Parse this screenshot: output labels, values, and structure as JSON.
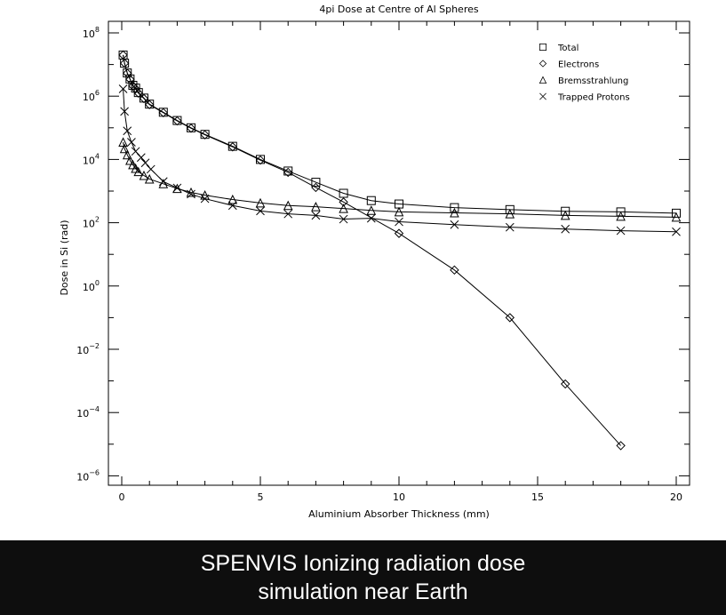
{
  "chart_data": {
    "type": "line",
    "title": "4pi Dose at Centre of Al Spheres",
    "xlabel": "Aluminium Absorber Thickness (mm)",
    "ylabel": "Dose in Si (rad)",
    "xlim": [
      0,
      20
    ],
    "ylim": [
      1e-06,
      100000000.0
    ],
    "yscale": "log",
    "xticks": [
      0,
      5,
      10,
      15,
      20
    ],
    "yticks": [
      {
        "exp": "8"
      },
      {
        "exp": "6"
      },
      {
        "exp": "4"
      },
      {
        "exp": "2"
      },
      {
        "exp": "0"
      },
      {
        "exp": "−2"
      },
      {
        "exp": "−4"
      },
      {
        "exp": "−6"
      }
    ],
    "ytick_base": "10",
    "grid": false,
    "legend_position": "top-right",
    "series": [
      {
        "name": "Total",
        "marker": "square",
        "x": [
          0.05,
          0.1,
          0.2,
          0.3,
          0.4,
          0.5,
          0.6,
          0.8,
          1.0,
          1.5,
          2,
          2.5,
          3,
          4,
          5,
          6,
          7,
          8,
          9,
          10,
          12,
          14,
          16,
          18,
          20
        ],
        "y": [
          20000000.0,
          11000000.0,
          5400000.0,
          3500000.0,
          2200000.0,
          1800000.0,
          1300000.0,
          870000.0,
          560000.0,
          310000.0,
          170000.0,
          100000.0,
          62000.0,
          26000.0,
          10000.0,
          4300.0,
          1900.0,
          850,
          500,
          390,
          300,
          260,
          230,
          220,
          200
        ]
      },
      {
        "name": "Electrons",
        "marker": "diamond",
        "x": [
          0.05,
          0.1,
          0.2,
          0.3,
          0.4,
          0.5,
          0.6,
          0.8,
          1.0,
          1.5,
          2,
          2.5,
          3,
          4,
          5,
          6,
          7,
          8,
          10,
          12,
          14,
          16,
          18
        ],
        "y": [
          20000000.0,
          11000000.0,
          5300000.0,
          3400000.0,
          2100000.0,
          1700000.0,
          1250000.0,
          840000.0,
          540000.0,
          300000.0,
          165000.0,
          97000.0,
          60000.0,
          25000.0,
          9500.0,
          3900.0,
          1300.0,
          450,
          46,
          3.2,
          0.1,
          0.0008,
          9e-06
        ]
      },
      {
        "name": "Bremsstrahlung",
        "marker": "triangle",
        "x": [
          0.05,
          0.1,
          0.2,
          0.3,
          0.4,
          0.5,
          0.6,
          0.8,
          1.0,
          1.5,
          2,
          2.5,
          3,
          4,
          5,
          6,
          7,
          8,
          9,
          10,
          12,
          14,
          16,
          18,
          20
        ],
        "y": [
          35000.0,
          22000.0,
          14000.0,
          9300.0,
          6800.0,
          5200.0,
          4100.0,
          3100.0,
          2400.0,
          1700.0,
          1200.0,
          910,
          740,
          540,
          420,
          350,
          320,
          280,
          245,
          220,
          205,
          190,
          170,
          160,
          150
        ]
      },
      {
        "name": "Trapped Protons",
        "marker": "cross",
        "x": [
          0.05,
          0.1,
          0.2,
          0.35,
          0.5,
          0.7,
          0.85,
          1.05,
          1.5,
          2,
          2.5,
          3,
          4,
          5,
          6,
          7,
          8,
          9,
          10,
          12,
          14,
          16,
          18,
          20
        ],
        "y": [
          1700000.0,
          330000.0,
          80000.0,
          35000.0,
          18000.0,
          11500.0,
          7800.0,
          4900.0,
          2000.0,
          1260.0,
          800,
          575,
          350,
          235,
          190,
          170,
          130,
          138,
          107,
          87,
          72,
          63,
          56,
          52
        ]
      }
    ]
  },
  "caption": {
    "line1": "SPENVIS Ionizing radiation dose",
    "line2": "simulation near Earth"
  }
}
